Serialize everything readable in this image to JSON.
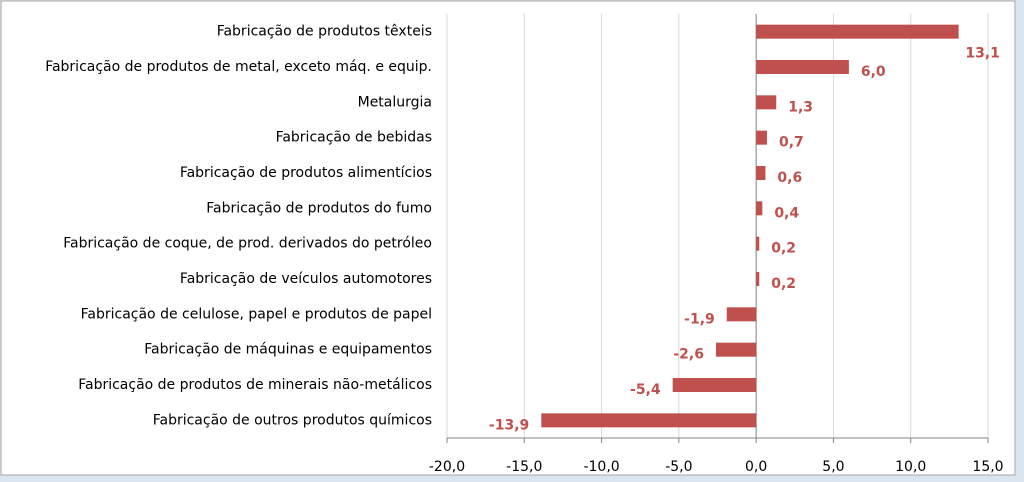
{
  "chart_data": {
    "type": "bar",
    "orientation": "horizontal",
    "categories": [
      "Fabricação de produtos têxteis",
      "Fabricação de produtos de metal, exceto máq. e equip.",
      "Metalurgia",
      "Fabricação de bebidas",
      "Fabricação de produtos alimentícios",
      "Fabricação de produtos do fumo",
      "Fabricação de coque, de prod. derivados do petróleo",
      "Fabricação de veículos automotores",
      "Fabricação de celulose, papel e produtos de papel",
      "Fabricação de máquinas e equipamentos",
      "Fabricação de produtos de minerais não-metálicos",
      "Fabricação de outros produtos químicos"
    ],
    "values": [
      13.1,
      6.0,
      1.3,
      0.7,
      0.6,
      0.4,
      0.2,
      0.2,
      -1.9,
      -2.6,
      -5.4,
      -13.9
    ],
    "value_labels": [
      "13,1",
      "6,0",
      "1,3",
      "0,7",
      "0,6",
      "0,4",
      "0,2",
      "0,2",
      "-1,9",
      "-2,6",
      "-5,4",
      "-13,9"
    ],
    "color": "#c0504d",
    "xlim": [
      -20,
      15
    ],
    "xticks": [
      {
        "value": -20,
        "label": "-20,0"
      },
      {
        "value": -15,
        "label": "-15,0"
      },
      {
        "value": -10,
        "label": "-10,0"
      },
      {
        "value": -5,
        "label": "-5,0"
      },
      {
        "value": 0,
        "label": "0,0"
      },
      {
        "value": 5,
        "label": "5,0"
      },
      {
        "value": 10,
        "label": "10,0"
      },
      {
        "value": 15,
        "label": "15,0"
      }
    ],
    "grid": true
  }
}
